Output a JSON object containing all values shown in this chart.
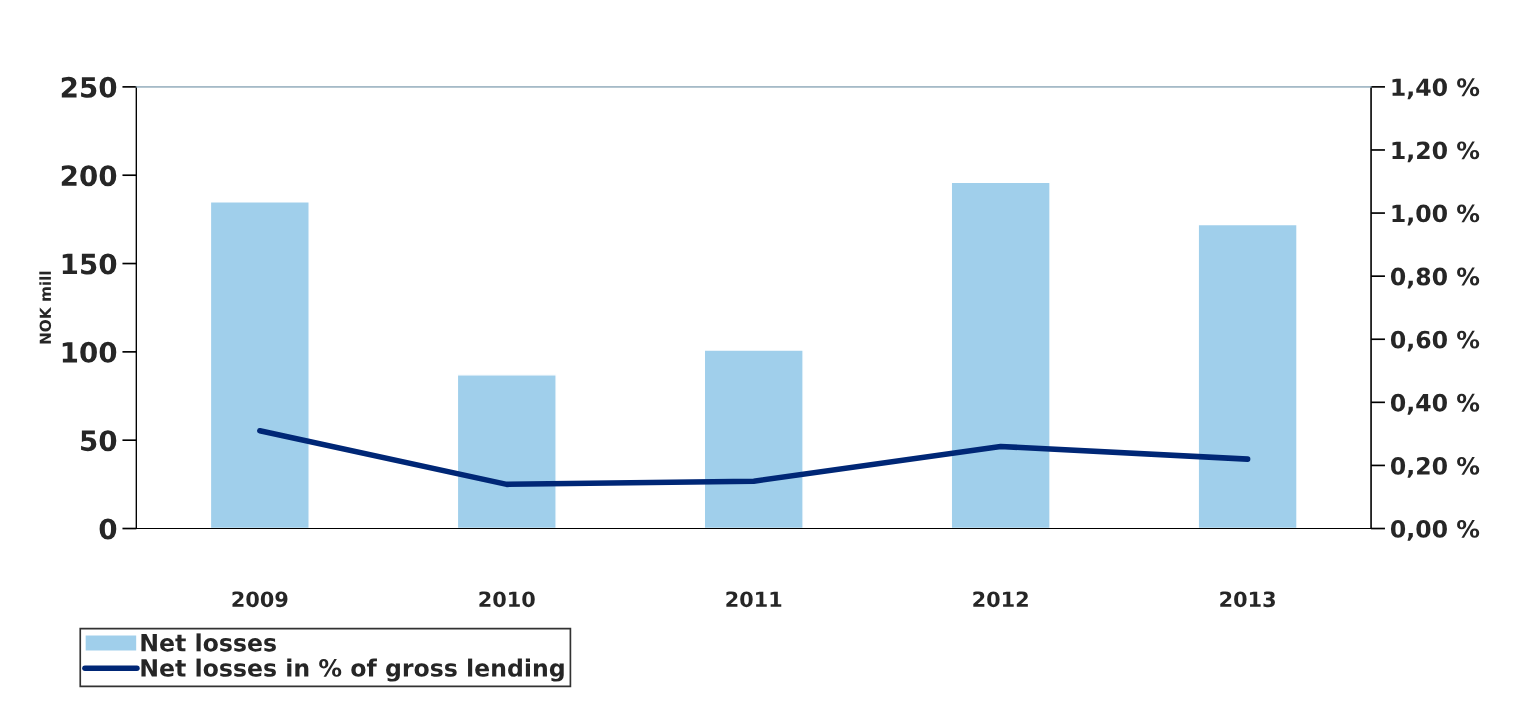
{
  "chart_data": {
    "type": "bar",
    "ylabel": "NOK mill",
    "categories": [
      "2009",
      "2010",
      "2011",
      "2012",
      "2013"
    ],
    "series": [
      {
        "name": "Net losses",
        "color": "#a0cfeb",
        "values": [
          185,
          87,
          101,
          196,
          172
        ]
      },
      {
        "name": "Net losses in % of gross lending",
        "type": "line",
        "axis": "y2",
        "color": "#002776",
        "values": [
          0.31,
          0.14,
          0.15,
          0.26,
          0.22
        ]
      }
    ],
    "ylim": [
      0,
      250
    ],
    "yticks": [
      0,
      50,
      100,
      150,
      200,
      250
    ],
    "y2lim": [
      0,
      1.4
    ],
    "y2ticks": [
      {
        "value": 0,
        "label": "0,00 %"
      },
      {
        "value": 0.2,
        "label": "0,20 %"
      },
      {
        "value": 0.4,
        "label": "0,40 %"
      },
      {
        "value": 0.6,
        "label": "0,60 %"
      },
      {
        "value": 0.8,
        "label": "0,80 %"
      },
      {
        "value": 1.0,
        "label": "1,00 %"
      },
      {
        "value": 1.2,
        "label": "1,20 %"
      },
      {
        "value": 1.4,
        "label": "1,40 %"
      }
    ],
    "legend": "bottom",
    "grid": false
  }
}
